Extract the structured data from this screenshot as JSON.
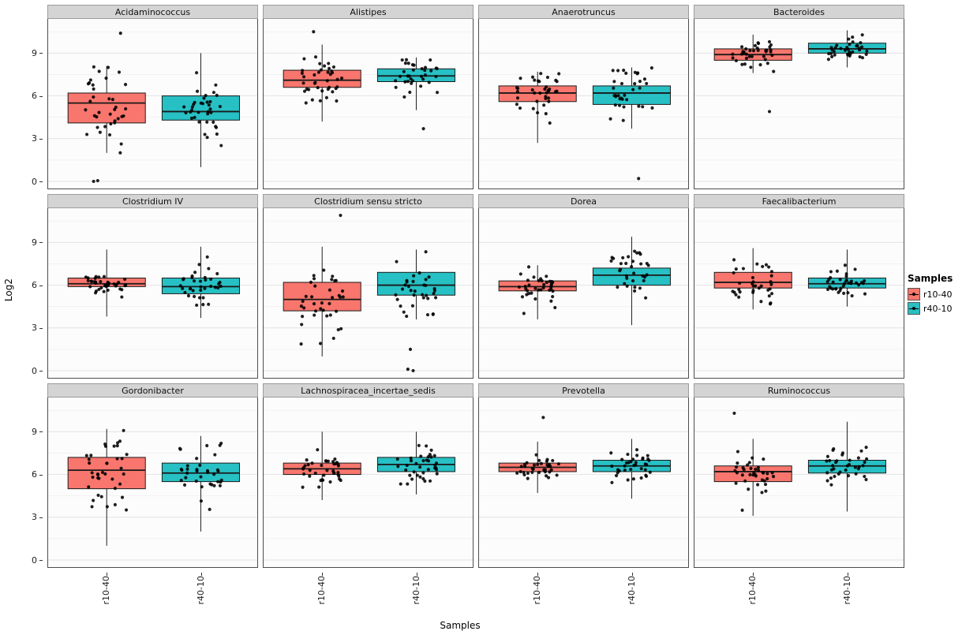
{
  "chart_data": {
    "type": "boxplot",
    "title": "",
    "ylabel": "Log2",
    "xlabel": "Samples",
    "y_ticks": [
      0,
      3,
      6,
      9
    ],
    "y_minor_ticks": [
      1.5,
      4.5,
      7.5,
      10.5
    ],
    "ylim": [
      -0.5,
      11.4
    ],
    "grid": true,
    "legend": {
      "title": "Samples",
      "position": "right"
    },
    "x_categories": [
      "r10-40",
      "r40-10"
    ],
    "groups": [
      {
        "key": "r10-40",
        "label": "r10-40",
        "color": "#F8766D"
      },
      {
        "key": "r40-10",
        "label": "r40-10",
        "color": "#27C0C4"
      }
    ],
    "style": {
      "strip_bg": "#d4d4d4",
      "strip_border": "#9c9c9c",
      "panel_bg": "#fcfcfc",
      "panel_border": "#4d4d4d",
      "grid_major": "#e2e2e2",
      "grid_minor": "#f1f1f1",
      "box_stroke": "#1a1a1a",
      "point_color": "#000000"
    },
    "facets": [
      {
        "title": "Acidaminococcus",
        "boxes": [
          {
            "group": "r10-40",
            "min": 2.0,
            "q1": 4.1,
            "median": 5.5,
            "q3": 6.2,
            "max": 8.1,
            "outliers": [
              0,
              0.05,
              10.4
            ],
            "n": 36
          },
          {
            "group": "r40-10",
            "min": 1.0,
            "q1": 4.3,
            "median": 4.9,
            "q3": 6.0,
            "max": 9.0,
            "outliers": [],
            "n": 36
          }
        ]
      },
      {
        "title": "Alistipes",
        "boxes": [
          {
            "group": "r10-40",
            "min": 4.2,
            "q1": 6.6,
            "median": 7.1,
            "q3": 7.8,
            "max": 9.6,
            "outliers": [
              10.5
            ],
            "n": 38
          },
          {
            "group": "r40-10",
            "min": 5.0,
            "q1": 7.0,
            "median": 7.4,
            "q3": 7.9,
            "max": 8.7,
            "outliers": [
              3.7
            ],
            "n": 34
          }
        ]
      },
      {
        "title": "Anaerotruncus",
        "boxes": [
          {
            "group": "r10-40",
            "min": 2.7,
            "q1": 5.6,
            "median": 6.2,
            "q3": 6.7,
            "max": 7.7,
            "outliers": [],
            "n": 37
          },
          {
            "group": "r40-10",
            "min": 3.7,
            "q1": 5.4,
            "median": 6.2,
            "q3": 6.7,
            "max": 8.0,
            "outliers": [
              0.2
            ],
            "n": 34
          }
        ]
      },
      {
        "title": "Bacteroides",
        "boxes": [
          {
            "group": "r10-40",
            "min": 7.6,
            "q1": 8.5,
            "median": 8.9,
            "q3": 9.3,
            "max": 10.3,
            "outliers": [
              4.9
            ],
            "n": 37
          },
          {
            "group": "r40-10",
            "min": 8.0,
            "q1": 9.0,
            "median": 9.3,
            "q3": 9.7,
            "max": 10.6,
            "outliers": [],
            "n": 35
          }
        ]
      },
      {
        "title": "Clostridium IV",
        "boxes": [
          {
            "group": "r10-40",
            "min": 3.8,
            "q1": 5.9,
            "median": 6.1,
            "q3": 6.5,
            "max": 8.5,
            "outliers": [],
            "n": 37
          },
          {
            "group": "r40-10",
            "min": 3.7,
            "q1": 5.4,
            "median": 5.9,
            "q3": 6.5,
            "max": 8.7,
            "outliers": [],
            "n": 36
          }
        ]
      },
      {
        "title": "Clostridium sensu stricto",
        "boxes": [
          {
            "group": "r10-40",
            "min": 1.0,
            "q1": 4.2,
            "median": 5.0,
            "q3": 6.2,
            "max": 8.7,
            "outliers": [
              10.9
            ],
            "n": 37
          },
          {
            "group": "r40-10",
            "min": 3.6,
            "q1": 5.3,
            "median": 6.0,
            "q3": 6.9,
            "max": 8.5,
            "outliers": [
              0,
              0.1,
              1.5
            ],
            "n": 34
          }
        ]
      },
      {
        "title": "Dorea",
        "boxes": [
          {
            "group": "r10-40",
            "min": 3.6,
            "q1": 5.6,
            "median": 5.9,
            "q3": 6.3,
            "max": 7.4,
            "outliers": [],
            "n": 37
          },
          {
            "group": "r40-10",
            "min": 3.2,
            "q1": 6.0,
            "median": 6.7,
            "q3": 7.2,
            "max": 9.4,
            "outliers": [],
            "n": 33
          }
        ]
      },
      {
        "title": "Faecalibacterium",
        "boxes": [
          {
            "group": "r10-40",
            "min": 4.3,
            "q1": 5.8,
            "median": 6.2,
            "q3": 6.9,
            "max": 8.6,
            "outliers": [],
            "n": 35
          },
          {
            "group": "r40-10",
            "min": 4.5,
            "q1": 5.8,
            "median": 6.1,
            "q3": 6.5,
            "max": 8.5,
            "outliers": [],
            "n": 36
          }
        ]
      },
      {
        "title": "Gordonibacter",
        "boxes": [
          {
            "group": "r10-40",
            "min": 1.0,
            "q1": 5.0,
            "median": 6.3,
            "q3": 7.2,
            "max": 9.2,
            "outliers": [],
            "n": 38
          },
          {
            "group": "r40-10",
            "min": 2.0,
            "q1": 5.5,
            "median": 6.1,
            "q3": 6.8,
            "max": 8.7,
            "outliers": [],
            "n": 35
          }
        ]
      },
      {
        "title": "Lachnospiracea_incertae_sedis",
        "boxes": [
          {
            "group": "r10-40",
            "min": 4.2,
            "q1": 6.0,
            "median": 6.4,
            "q3": 6.8,
            "max": 9.0,
            "outliers": [],
            "n": 39
          },
          {
            "group": "r40-10",
            "min": 4.6,
            "q1": 6.2,
            "median": 6.7,
            "q3": 7.2,
            "max": 9.0,
            "outliers": [],
            "n": 37
          }
        ]
      },
      {
        "title": "Prevotella",
        "boxes": [
          {
            "group": "r10-40",
            "min": 4.7,
            "q1": 6.2,
            "median": 6.5,
            "q3": 6.8,
            "max": 8.3,
            "outliers": [
              10.0
            ],
            "n": 35
          },
          {
            "group": "r40-10",
            "min": 4.3,
            "q1": 6.2,
            "median": 6.6,
            "q3": 7.0,
            "max": 8.5,
            "outliers": [],
            "n": 36
          }
        ]
      },
      {
        "title": "Ruminococcus",
        "boxes": [
          {
            "group": "r10-40",
            "min": 3.1,
            "q1": 5.5,
            "median": 6.2,
            "q3": 6.6,
            "max": 8.5,
            "outliers": [
              10.3
            ],
            "n": 37
          },
          {
            "group": "r40-10",
            "min": 3.4,
            "q1": 6.1,
            "median": 6.6,
            "q3": 7.0,
            "max": 9.7,
            "outliers": [],
            "n": 36
          }
        ]
      }
    ]
  },
  "axes": {
    "y_tick_labels": [
      "9",
      "6",
      "3",
      "0"
    ],
    "x_tick_labels": [
      "r10-40",
      "r40-10"
    ]
  }
}
